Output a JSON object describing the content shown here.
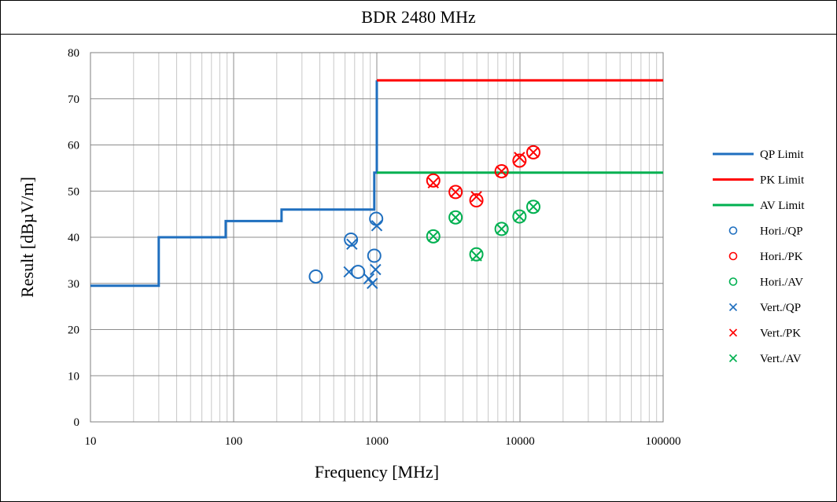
{
  "chart_data": {
    "type": "scatter",
    "title": "BDR 2480 MHz",
    "xlabel": "Frequency [MHz]",
    "ylabel": "Result [dBµV/m]",
    "xscale": "log",
    "xlim": [
      10,
      100000
    ],
    "ylim": [
      0,
      80
    ],
    "x_ticks": [
      10,
      100,
      1000,
      10000,
      100000
    ],
    "x_tick_labels": [
      "10",
      "100",
      "1000",
      "10000",
      "100000"
    ],
    "y_ticks": [
      0,
      10,
      20,
      30,
      40,
      50,
      60,
      70,
      80
    ],
    "y_tick_labels": [
      "0",
      "10",
      "20",
      "30",
      "40",
      "50",
      "60",
      "70",
      "80"
    ],
    "grid": true,
    "legend_position": "right",
    "limits": [
      {
        "name": "QP Limit",
        "color": "#1f6fbf",
        "points": [
          [
            10,
            29.5
          ],
          [
            30,
            29.5
          ],
          [
            30,
            40
          ],
          [
            88,
            40
          ],
          [
            88,
            43.5
          ],
          [
            216,
            43.5
          ],
          [
            216,
            46
          ],
          [
            960,
            46
          ],
          [
            960,
            54
          ],
          [
            1000,
            54
          ],
          [
            1000,
            74
          ]
        ]
      },
      {
        "name": "PK Limit",
        "color": "#ff0000",
        "points": [
          [
            1000,
            74
          ],
          [
            100000,
            74
          ]
        ]
      },
      {
        "name": "AV Limit",
        "color": "#00b050",
        "points": [
          [
            1000,
            54
          ],
          [
            100000,
            54
          ]
        ]
      }
    ],
    "series": [
      {
        "name": "Hori./QP",
        "marker": "circle",
        "color": "#1f6fbf",
        "points": [
          [
            375,
            31.5
          ],
          [
            660,
            39.5
          ],
          [
            740,
            32.5
          ],
          [
            960,
            36
          ],
          [
            990,
            44
          ]
        ]
      },
      {
        "name": "Hori./PK",
        "marker": "circle",
        "color": "#ff0000",
        "points": [
          [
            2480,
            52.3
          ],
          [
            3550,
            49.8
          ],
          [
            4960,
            48
          ],
          [
            7440,
            54.3
          ],
          [
            9920,
            56.6
          ],
          [
            12400,
            58.4
          ]
        ]
      },
      {
        "name": "Hori./AV",
        "marker": "circle",
        "color": "#00b050",
        "points": [
          [
            2480,
            40.2
          ],
          [
            3550,
            44.3
          ],
          [
            4960,
            36.3
          ],
          [
            7440,
            41.8
          ],
          [
            9920,
            44.5
          ],
          [
            12400,
            46.6
          ]
        ]
      },
      {
        "name": "Vert./QP",
        "marker": "x",
        "color": "#1f6fbf",
        "points": [
          [
            640,
            32.5
          ],
          [
            670,
            38.5
          ],
          [
            880,
            31
          ],
          [
            930,
            30
          ],
          [
            980,
            33
          ],
          [
            1000,
            42.5
          ]
        ]
      },
      {
        "name": "Vert./PK",
        "marker": "x",
        "color": "#ff0000",
        "points": [
          [
            2480,
            51.8
          ],
          [
            3550,
            49.8
          ],
          [
            4960,
            48.8
          ],
          [
            7440,
            54.3
          ],
          [
            9920,
            57.3
          ],
          [
            12400,
            58.4
          ]
        ]
      },
      {
        "name": "Vert./AV",
        "marker": "x",
        "color": "#00b050",
        "points": [
          [
            2480,
            40.2
          ],
          [
            3550,
            44.3
          ],
          [
            4960,
            36
          ],
          [
            7440,
            41.8
          ],
          [
            9920,
            44.5
          ],
          [
            12400,
            46.6
          ]
        ]
      }
    ]
  }
}
